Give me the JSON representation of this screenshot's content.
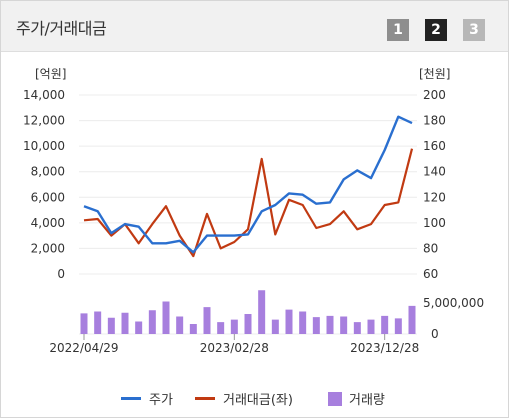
{
  "header": {
    "title": "주가/거래대금",
    "pages": [
      "1",
      "2",
      "3"
    ]
  },
  "colors": {
    "price": "#2a6fcf",
    "amount": "#c13a12",
    "volume": "#a77fde",
    "active_page": "#222222",
    "inactive_page": "#8e8e8e"
  },
  "legend": {
    "price": "주가",
    "amount": "거래대금(좌)",
    "volume": "거래량"
  },
  "chart_data": {
    "type": "line",
    "left_unit": "[억원]",
    "right_unit": "[천원]",
    "left_ticks": [
      "14,000",
      "12,000",
      "10,000",
      "8,000",
      "6,000",
      "4,000",
      "2,000",
      "0"
    ],
    "right_ticks": [
      "200",
      "180",
      "160",
      "140",
      "120",
      "100",
      "80",
      "60"
    ],
    "volume_ticks": [
      "5,000,000",
      "0"
    ],
    "x_tick_labels": [
      "2022/04/29",
      "2023/02/28",
      "2023/12/28"
    ],
    "ylim_left": [
      0,
      14000
    ],
    "ylim_right": [
      60,
      200
    ],
    "ylim_volume": [
      0,
      8000000
    ],
    "series": [
      {
        "name": "주가",
        "axis": "right",
        "values": [
          113,
          109,
          92,
          99,
          97,
          84,
          84,
          86,
          77,
          90,
          90,
          90,
          91,
          109,
          114,
          123,
          122,
          115,
          116,
          134,
          141,
          135,
          157,
          183,
          178
        ]
      },
      {
        "name": "거래대금(좌)",
        "axis": "left",
        "values": [
          4200,
          4300,
          3000,
          3900,
          2400,
          3900,
          5300,
          3000,
          1400,
          4700,
          2000,
          2500,
          3500,
          9000,
          3100,
          5800,
          5400,
          3600,
          3900,
          4900,
          3500,
          3900,
          5400,
          5600,
          9800
        ]
      },
      {
        "name": "거래량",
        "axis": "volume",
        "values": [
          3300000,
          3600000,
          2600000,
          3400000,
          2000000,
          3800000,
          5200000,
          2800000,
          1600000,
          4300000,
          1900000,
          2300000,
          3200000,
          7000000,
          2300000,
          3900000,
          3600000,
          2700000,
          2900000,
          2800000,
          1900000,
          2300000,
          2900000,
          2500000,
          4500000
        ]
      }
    ]
  }
}
